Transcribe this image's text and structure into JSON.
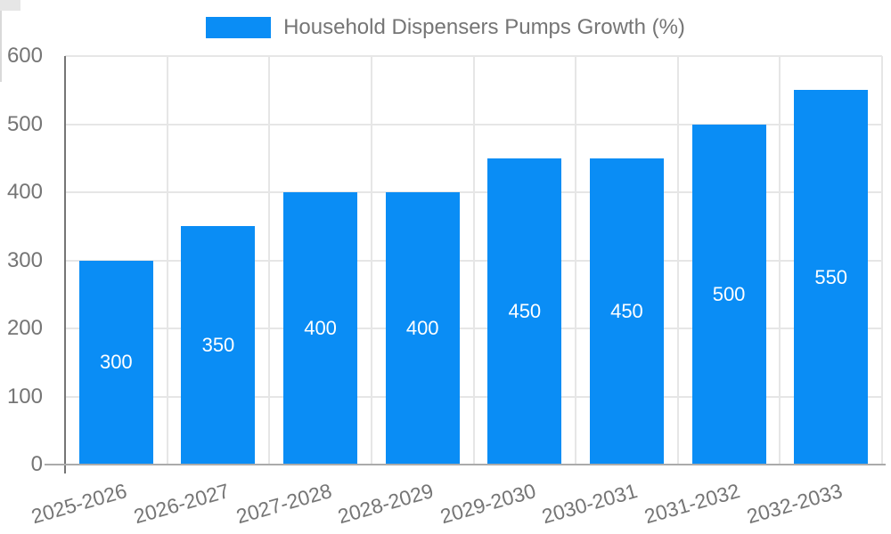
{
  "legend": {
    "label": "Household Dispensers Pumps Growth (%)"
  },
  "chart_data": {
    "type": "bar",
    "title": "Household Dispensers Pumps Growth (%)",
    "categories": [
      "2025-2026",
      "2026-2027",
      "2027-2028",
      "2028-2029",
      "2029-2030",
      "2030-2031",
      "2031-2032",
      "2032-2033"
    ],
    "values": [
      300,
      350,
      400,
      400,
      450,
      450,
      500,
      550
    ],
    "series": [
      {
        "name": "Household Dispensers Pumps Growth (%)",
        "values": [
          300,
          350,
          400,
          400,
          450,
          450,
          500,
          550
        ]
      }
    ],
    "xlabel": "",
    "ylabel": "",
    "ylim": [
      0,
      600
    ],
    "yticks": [
      0,
      100,
      200,
      300,
      400,
      500,
      600
    ],
    "bar_value_labels": true,
    "legend_position": "top-center",
    "grid": true
  },
  "colors": {
    "bar": "#0a8df5",
    "bar_label": "#ffffff",
    "axis_text": "#757575",
    "grid_line": "#e6e6e6",
    "y_axis_line": "#757575",
    "x_axis_line": "#ababab",
    "tick": "#d9d9d9",
    "background": "#ffffff"
  }
}
